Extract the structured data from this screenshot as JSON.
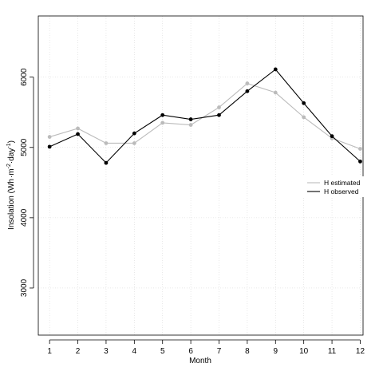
{
  "chart_data": {
    "type": "line",
    "title": "",
    "xlabel": "Month",
    "ylabel_parts": {
      "pre": "Insolation (Wh",
      "mid": "m",
      "exp1": "-2",
      "mid2": "day",
      "exp2": "-1",
      "post": ")"
    },
    "x": [
      1,
      2,
      3,
      4,
      5,
      6,
      7,
      8,
      9,
      10,
      11,
      12
    ],
    "x_tick_labels": [
      "1",
      "2",
      "3",
      "4",
      "5",
      "6",
      "7",
      "8",
      "9",
      "10",
      "11",
      "12"
    ],
    "y_tick_values": [
      3000,
      4000,
      5000,
      6000
    ],
    "y_tick_labels": [
      "3000",
      "4000",
      "5000",
      "6000"
    ],
    "xlim": [
      0.6,
      12.1
    ],
    "ylim": [
      2330,
      6870
    ],
    "grid": true,
    "legend_position": "right",
    "series": [
      {
        "name": "H estimated",
        "color": "#bbbbbb",
        "values": [
          5150,
          5270,
          5060,
          5060,
          5350,
          5320,
          5570,
          5910,
          5780,
          5430,
          5130,
          4980
        ]
      },
      {
        "name": "H observed",
        "color": "#000000",
        "values": [
          5010,
          5190,
          4780,
          5200,
          5460,
          5400,
          5460,
          5800,
          6110,
          5630,
          5160,
          4800
        ]
      }
    ]
  }
}
